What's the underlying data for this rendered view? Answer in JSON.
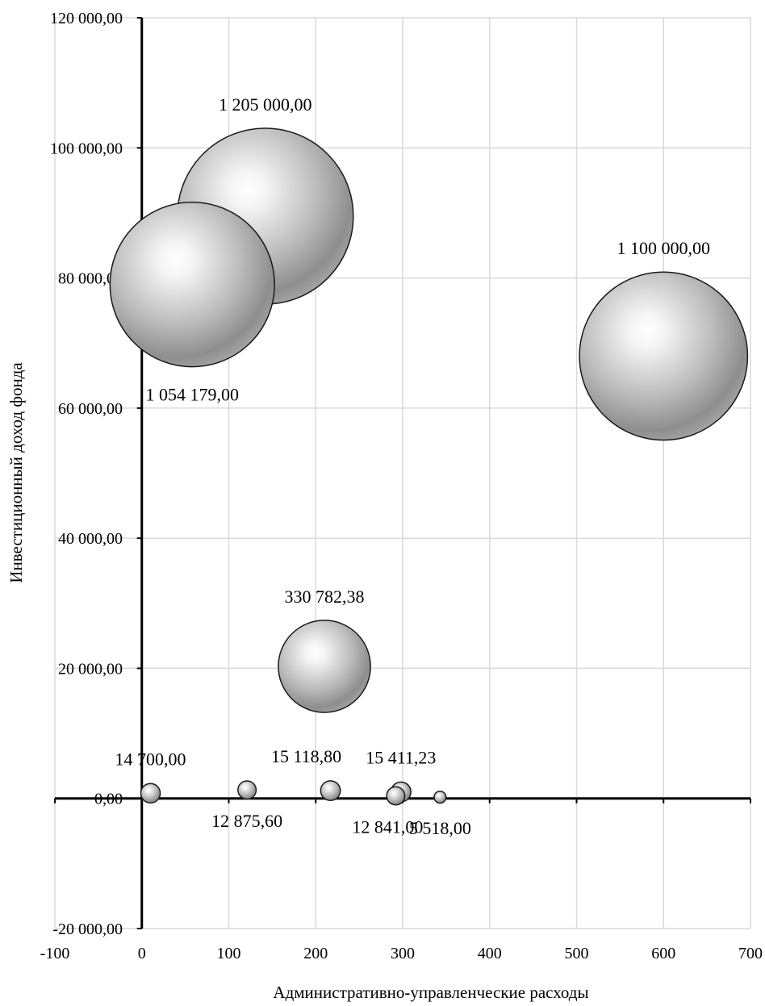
{
  "chart_data": {
    "type": "bubble",
    "title": "",
    "xlabel": "Административно-управленческие расходы",
    "ylabel": "Инвестиционный доход фонда",
    "xlim": [
      -100,
      700
    ],
    "ylim": [
      -20000,
      120000
    ],
    "x_ticks": [
      -100,
      0,
      100,
      200,
      300,
      400,
      500,
      600,
      700
    ],
    "x_tick_labels": [
      "-100",
      "0",
      "100",
      "200",
      "300",
      "400",
      "500",
      "600",
      "700"
    ],
    "y_ticks": [
      -20000,
      0,
      20000,
      40000,
      60000,
      80000,
      100000,
      120000
    ],
    "y_tick_labels": [
      "-20 000,00",
      "0,00",
      "20 000,00",
      "40 000,00",
      "60 000,00",
      "80 000,00",
      "100 000,00",
      "120 000,00"
    ],
    "grid": true,
    "legend": "none",
    "bubble_color": "#b8b8b8",
    "points": [
      {
        "x": 142,
        "y": 89500,
        "size": 1205000,
        "label": "1 205 000,00",
        "label_pos": "above"
      },
      {
        "x": 58,
        "y": 79000,
        "size": 1054179,
        "label": "1 054 179,00",
        "label_pos": "below"
      },
      {
        "x": 600,
        "y": 68000,
        "size": 1100000,
        "label": "1 100 000,00",
        "label_pos": "above"
      },
      {
        "x": 210,
        "y": 20300,
        "size": 330782.38,
        "label": "330 782,38",
        "label_pos": "above"
      },
      {
        "x": 10,
        "y": 800,
        "size": 14700,
        "label": "14 700,00",
        "label_pos": "above"
      },
      {
        "x": 121,
        "y": 1300,
        "size": 12875.6,
        "label": "12 875,60",
        "label_pos": "below"
      },
      {
        "x": 217,
        "y": 1200,
        "size": 15118.8,
        "label": "15 118,80",
        "label_pos": "above-left"
      },
      {
        "x": 298,
        "y": 1000,
        "size": 15411.23,
        "label": "15 411,23",
        "label_pos": "above"
      },
      {
        "x": 292,
        "y": 400,
        "size": 12841,
        "label": "12 841,00",
        "label_pos": "below-left"
      },
      {
        "x": 343,
        "y": 200,
        "size": 5518,
        "label": "5 518,00",
        "label_pos": "below"
      }
    ]
  }
}
